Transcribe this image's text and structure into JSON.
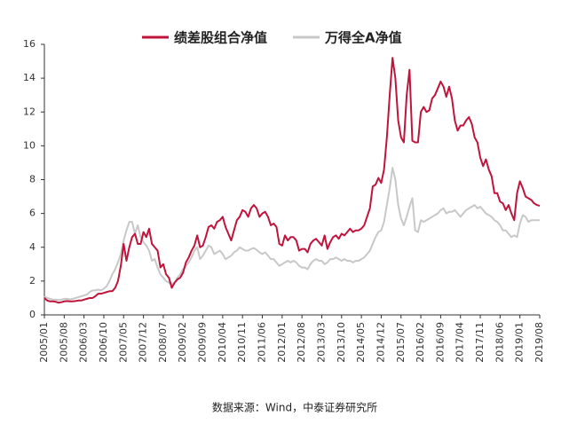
{
  "chart_data": {
    "type": "line",
    "categories": [
      "2005/01",
      null,
      null,
      null,
      null,
      null,
      null,
      "2005/08",
      null,
      null,
      null,
      null,
      null,
      null,
      "2006/03",
      null,
      null,
      null,
      null,
      null,
      null,
      "2006/10",
      null,
      null,
      null,
      null,
      null,
      null,
      "2007/05",
      null,
      null,
      null,
      null,
      null,
      null,
      "2007/12",
      null,
      null,
      null,
      null,
      null,
      null,
      "2008/07",
      null,
      null,
      null,
      null,
      null,
      null,
      "2009/02",
      null,
      null,
      null,
      null,
      null,
      null,
      "2009/09",
      null,
      null,
      null,
      null,
      null,
      null,
      "2010/04",
      null,
      null,
      null,
      null,
      null,
      null,
      "2010/11",
      null,
      null,
      null,
      null,
      null,
      null,
      "2011/06",
      null,
      null,
      null,
      null,
      null,
      null,
      "2012/01",
      null,
      null,
      null,
      null,
      null,
      null,
      "2012/08",
      null,
      null,
      null,
      null,
      null,
      null,
      "2013/03",
      null,
      null,
      null,
      null,
      null,
      null,
      "2013/10",
      null,
      null,
      null,
      null,
      null,
      null,
      "2014/05",
      null,
      null,
      null,
      null,
      null,
      null,
      "2014/12",
      null,
      null,
      null,
      null,
      null,
      null,
      "2015/07",
      null,
      null,
      null,
      null,
      null,
      null,
      "2016/02",
      null,
      null,
      null,
      null,
      null,
      null,
      "2016/09",
      null,
      null,
      null,
      null,
      null,
      null,
      "2017/04",
      null,
      null,
      null,
      null,
      null,
      null,
      "2017/11",
      null,
      null,
      null,
      null,
      null,
      null,
      "2018/06",
      null,
      null,
      null,
      null,
      null,
      null,
      "2019/01",
      null,
      null,
      null,
      null,
      null,
      null,
      "2019/08"
    ],
    "series": [
      {
        "name": "绩差股组合净值",
        "color": "#c0143c",
        "values": [
          1.0,
          0.85,
          0.8,
          0.8,
          0.78,
          0.72,
          0.75,
          0.8,
          0.82,
          0.8,
          0.8,
          0.82,
          0.85,
          0.85,
          0.9,
          0.95,
          1.0,
          1.0,
          1.1,
          1.25,
          1.25,
          1.3,
          1.35,
          1.4,
          1.4,
          1.6,
          2.0,
          2.9,
          4.2,
          3.2,
          4.0,
          4.6,
          4.8,
          4.2,
          4.2,
          4.9,
          4.6,
          5.1,
          4.2,
          4.0,
          3.8,
          2.8,
          3.0,
          2.4,
          2.2,
          1.6,
          1.9,
          2.1,
          2.2,
          2.5,
          3.1,
          3.4,
          3.8,
          4.1,
          4.7,
          4.0,
          4.1,
          4.6,
          5.2,
          5.3,
          5.1,
          5.5,
          5.6,
          5.8,
          5.2,
          4.8,
          4.4,
          5.0,
          5.6,
          5.8,
          6.2,
          6.1,
          5.8,
          6.3,
          6.5,
          6.3,
          5.8,
          6.0,
          6.1,
          5.8,
          5.3,
          5.4,
          5.2,
          4.2,
          4.1,
          4.7,
          4.4,
          4.6,
          4.6,
          4.4,
          3.8,
          3.9,
          3.9,
          3.7,
          4.2,
          4.4,
          4.5,
          4.3,
          4.1,
          4.7,
          3.9,
          4.3,
          4.6,
          4.7,
          4.5,
          4.8,
          4.7,
          4.9,
          5.1,
          4.9,
          5.0,
          5.0,
          5.1,
          5.3,
          5.8,
          6.3,
          7.6,
          7.7,
          8.1,
          7.8,
          8.6,
          10.5,
          13.0,
          15.2,
          14.0,
          11.5,
          10.5,
          10.2,
          13.0,
          14.5,
          10.3,
          10.2,
          10.2,
          12.0,
          12.3,
          12.0,
          12.1,
          12.8,
          13.0,
          13.4,
          13.8,
          13.5,
          12.9,
          13.5,
          12.8,
          11.5,
          10.9,
          11.2,
          11.2,
          11.5,
          11.7,
          11.3,
          10.5,
          10.2,
          9.3,
          8.8,
          9.2,
          8.6,
          8.2,
          7.2,
          7.2,
          6.7,
          6.6,
          6.2,
          6.5,
          6.0,
          5.6,
          7.2,
          7.9,
          7.5,
          7.0,
          6.9,
          6.8,
          6.6,
          6.5,
          6.45
        ]
      },
      {
        "name": "万得全A净值",
        "color": "#c8c8c8",
        "values": [
          1.1,
          1.0,
          0.95,
          0.9,
          0.9,
          0.88,
          0.9,
          0.95,
          0.95,
          0.92,
          0.95,
          1.0,
          1.05,
          1.1,
          1.15,
          1.2,
          1.35,
          1.45,
          1.45,
          1.5,
          1.45,
          1.55,
          1.7,
          2.0,
          2.4,
          2.7,
          3.1,
          3.6,
          4.4,
          5.0,
          5.5,
          5.5,
          4.8,
          5.3,
          4.6,
          4.3,
          4.1,
          3.8,
          3.2,
          3.3,
          2.8,
          2.4,
          2.2,
          2.0,
          1.9,
          1.8,
          1.9,
          2.2,
          2.4,
          2.7,
          2.9,
          3.1,
          3.4,
          3.8,
          4.0,
          3.3,
          3.5,
          3.8,
          4.1,
          4.0,
          3.6,
          3.7,
          3.8,
          3.6,
          3.3,
          3.4,
          3.5,
          3.7,
          3.8,
          4.0,
          3.9,
          3.8,
          3.8,
          3.9,
          3.95,
          3.85,
          3.7,
          3.6,
          3.7,
          3.5,
          3.3,
          3.3,
          3.1,
          2.9,
          3.0,
          3.1,
          3.2,
          3.1,
          3.2,
          3.1,
          2.9,
          2.8,
          2.8,
          2.7,
          3.0,
          3.2,
          3.3,
          3.2,
          3.2,
          3.0,
          3.1,
          3.3,
          3.3,
          3.4,
          3.3,
          3.2,
          3.3,
          3.2,
          3.2,
          3.1,
          3.2,
          3.2,
          3.3,
          3.4,
          3.6,
          3.8,
          4.2,
          4.6,
          4.9,
          5.0,
          5.5,
          6.5,
          7.5,
          8.7,
          8.0,
          6.5,
          5.7,
          5.3,
          5.8,
          6.4,
          6.9,
          5.0,
          4.9,
          5.6,
          5.5,
          5.6,
          5.7,
          5.8,
          5.9,
          6.0,
          6.2,
          6.3,
          6.0,
          6.1,
          6.1,
          6.2,
          6.0,
          5.8,
          6.0,
          6.2,
          6.3,
          6.4,
          6.5,
          6.3,
          6.4,
          6.2,
          6.0,
          5.9,
          5.8,
          5.6,
          5.5,
          5.3,
          5.0,
          5.0,
          4.8,
          4.6,
          4.7,
          4.6,
          5.4,
          5.9,
          5.8,
          5.5,
          5.6,
          5.6,
          5.6,
          5.6
        ]
      }
    ],
    "ylim": [
      0,
      16
    ],
    "yticks": [
      0,
      2,
      4,
      6,
      8,
      10,
      12,
      14,
      16
    ],
    "grid": false,
    "source": "数据来源：Wind，中泰证券研究所"
  }
}
